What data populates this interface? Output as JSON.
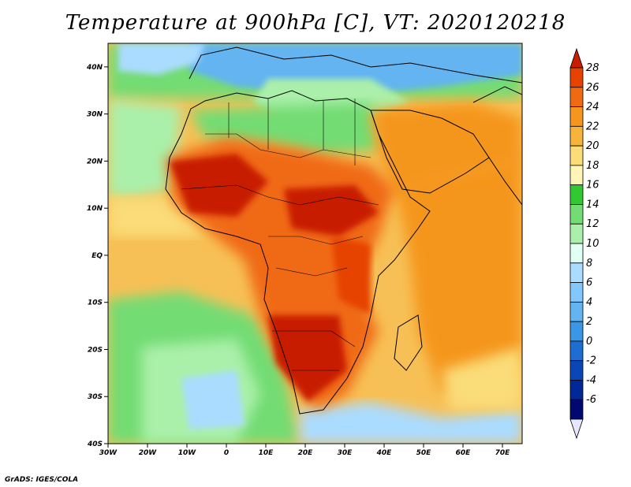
{
  "title": "Temperature at 900hPa [C], VT: 2020120218",
  "footer": "GrADS: IGES/COLA",
  "map": {
    "lat_labels": [
      "40N",
      "30N",
      "20N",
      "10N",
      "EQ",
      "10S",
      "20S",
      "30S",
      "40S"
    ],
    "lon_labels": [
      "30W",
      "20W",
      "10W",
      "0",
      "10E",
      "20E",
      "30E",
      "40E",
      "50E",
      "60E",
      "70E"
    ],
    "lat_range": [
      -40,
      45
    ],
    "lon_range": [
      -30,
      75
    ]
  },
  "colorbar": {
    "labels": [
      "28",
      "26",
      "24",
      "22",
      "20",
      "18",
      "16",
      "14",
      "12",
      "10",
      "8",
      "6",
      "4",
      "2",
      "0",
      "-2",
      "-4",
      "-6"
    ],
    "colors": [
      "#c81e00",
      "#e64200",
      "#f06a14",
      "#f5961e",
      "#f7b43c",
      "#fadc78",
      "#fff5b4",
      "#32c832",
      "#73dc73",
      "#aaf0aa",
      "#e1fff5",
      "#aadcff",
      "#82c8ff",
      "#64b4f0",
      "#3c96e6",
      "#1e6ed2",
      "#0a46b4",
      "#002896",
      "#000a6e",
      "#e6e6ff"
    ]
  },
  "palette": {
    "ocean_warm": "#f7c056",
    "ocean_mid": "#fadc78",
    "ocean_cool": "#73dc73",
    "ocean_cold": "#aaf0aa",
    "sahara_hot": "#e64200",
    "mediterranean": "#64b4f0"
  }
}
